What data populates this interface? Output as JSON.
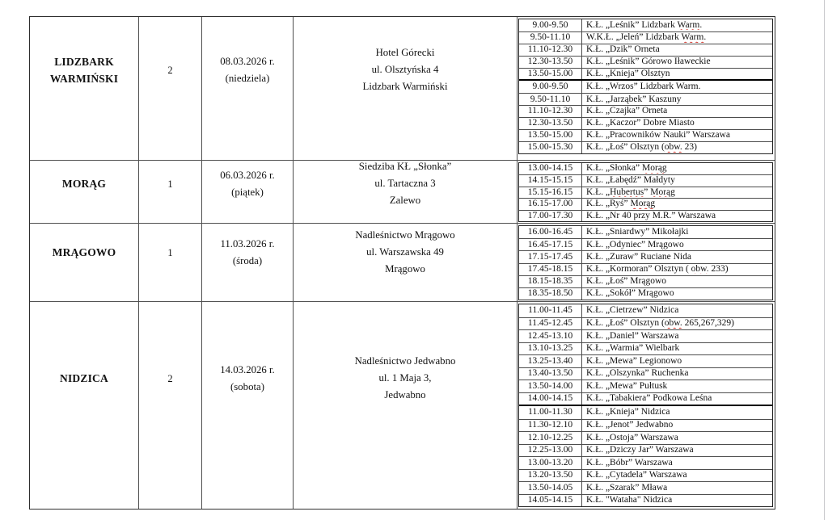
{
  "colors": {
    "grid": "#4f4f4f",
    "thick_separator": "#000000",
    "spellcheck_squiggle": "#d2342a"
  },
  "document": {
    "rows": [
      {
        "location": "LIDZBARK WARMIŃSKI",
        "district_count": "2",
        "date_lines": [
          "08.03.2026 r.",
          "(niedziela)"
        ],
        "venue_lines": [
          "Hotel Górecki",
          "ul. Olsztyńska 4",
          "Lidzbark Warmiński"
        ],
        "schedule_blocks": [
          {
            "entries": [
              {
                "time": "9.00-9.50",
                "club": "K.Ł. „Leśnik” Lidzbark Warm.",
                "misspelled": [
                  "Warm."
                ]
              },
              {
                "time": "9.50-11.10",
                "club": "W.K.Ł. „Jeleń” Lidzbark Warm.",
                "misspelled": [
                  "Warm."
                ]
              },
              {
                "time": "11.10-12.30",
                "club": "K.Ł. „Dzik” Orneta"
              },
              {
                "time": "12.30-13.50",
                "club": "K.Ł. „Leśnik” Górowo Iławeckie"
              },
              {
                "time": "13.50-15.00",
                "club": "K.Ł. „Knieja” Olsztyn"
              }
            ]
          },
          {
            "entries": [
              {
                "time": "9.00-9.50",
                "club": "K.Ł. „Wrzos” Lidzbark Warm."
              },
              {
                "time": "9.50-11.10",
                "club": "K.Ł. „Jarząbek” Kaszuny"
              },
              {
                "time": "11.10-12.30",
                "club": "K.Ł. „Czajka” Orneta"
              },
              {
                "time": "12.30-13.50",
                "club": "K.Ł. „Kaczor” Dobre Miasto"
              },
              {
                "time": "13.50-15.00",
                "club": "K.Ł. „Pracowników Nauki” Warszawa"
              },
              {
                "time": "15.00-15.30",
                "club": "K.Ł. „Łoś” Olsztyn (obw. 23)",
                "misspelled": [
                  "obw."
                ]
              }
            ]
          }
        ]
      },
      {
        "location": "MORĄG",
        "district_count": "1",
        "date_lines": [
          "06.03.2026 r.",
          "(piątek)"
        ],
        "venue_lines": [
          "Siedziba KŁ „Słonka”",
          "ul. Tartaczna 3",
          "Zalewo"
        ],
        "schedule_blocks": [
          {
            "entries": [
              {
                "time": "13.00-14.15",
                "club": "K.Ł. „Słonka” Morąg",
                "misspelled": [
                  "Morąg"
                ]
              },
              {
                "time": "14.15-15.15",
                "club": "K.Ł. „Łabędź” Małdyty"
              },
              {
                "time": "15.15-16.15",
                "club": "K.Ł. „Hubertus” Morąg",
                "misspelled": [
                  "Hubertus",
                  "Morąg"
                ]
              },
              {
                "time": "16.15-17.00",
                "club": "K.Ł. „Ryś” Morąg",
                "misspelled": [
                  "Morąg"
                ]
              },
              {
                "time": "17.00-17.30",
                "club": "K.Ł. „Nr 40 przy M.R.” Warszawa"
              }
            ]
          }
        ]
      },
      {
        "location": "MRĄGOWO",
        "district_count": "1",
        "date_lines": [
          "11.03.2026 r.",
          "(środa)"
        ],
        "venue_lines": [
          "Nadleśnictwo Mrągowo",
          "ul. Warszawska 49",
          "Mrągowo"
        ],
        "schedule_blocks": [
          {
            "entries": [
              {
                "time": "16.00-16.45",
                "club": "K.Ł. „Śniardwy” Mikołajki"
              },
              {
                "time": "16.45-17.15",
                "club": "K.Ł. „Odyniec” Mrągowo"
              },
              {
                "time": "17.15-17.45",
                "club": "K.Ł. „Żuraw” Ruciane Nida"
              },
              {
                "time": "17.45-18.15",
                "club": "K.Ł. „Kormoran” Olsztyn ( obw. 233)",
                "misspelled": [
                  "obw."
                ]
              },
              {
                "time": "18.15-18.35",
                "club": "K.Ł. „Łoś” Mrągowo"
              },
              {
                "time": "18.35-18.50",
                "club": "K.Ł. „Sokół” Mrągowo"
              }
            ]
          }
        ]
      },
      {
        "location": "NIDZICA",
        "district_count": "2",
        "date_lines": [
          "14.03.2026 r.",
          "(sobota)"
        ],
        "venue_lines": [
          "Nadleśnictwo Jedwabno",
          "ul. 1 Maja 3,",
          "Jedwabno"
        ],
        "schedule_blocks": [
          {
            "entries": [
              {
                "time": "11.00-11.45",
                "club": "K.Ł. „Cietrzew” Nidzica"
              },
              {
                "time": "11.45-12.45",
                "club": "K.Ł. „Łoś” Olsztyn (obw. 265,267,329)",
                "misspelled": [
                  "obw."
                ]
              },
              {
                "time": "12.45-13.10",
                "club": "K.Ł. „Daniel” Warszawa"
              },
              {
                "time": "13.10-13.25",
                "club": "K.Ł. „Warmia” Wielbark"
              },
              {
                "time": "13.25-13.40",
                "club": "K.Ł. „Mewa” Legionowo"
              },
              {
                "time": "13.40-13.50",
                "club": "K.Ł. „Olszynka” Ruchenka"
              },
              {
                "time": "13.50-14.00",
                "club": "K.Ł. „Mewa” Pułtusk"
              },
              {
                "time": "14.00-14.15",
                "club": "K.Ł. „Tabakiera” Podkowa Leśna"
              }
            ]
          },
          {
            "entries": [
              {
                "time": "11.00-11.30",
                "club": "K.Ł. „Knieja” Nidzica"
              },
              {
                "time": "11.30-12.10",
                "club": "K.Ł. „Jenot” Jedwabno"
              },
              {
                "time": "12.10-12.25",
                "club": "K.Ł. „Ostoja” Warszawa"
              },
              {
                "time": "12.25-13.00",
                "club": "K.Ł. „Dziczy Jar” Warszawa"
              },
              {
                "time": "13.00-13.20",
                "club": "K.Ł. „Bóbr” Warszawa"
              },
              {
                "time": "13.20-13.50",
                "club": "K.Ł. „Cytadela” Warszawa"
              },
              {
                "time": "13.50-14.05",
                "club": "K.Ł. „Szarak” Mława"
              },
              {
                "time": "14.05-14.15",
                "club": "K.Ł. \"Wataha\" Nidzica"
              }
            ]
          }
        ]
      }
    ]
  }
}
